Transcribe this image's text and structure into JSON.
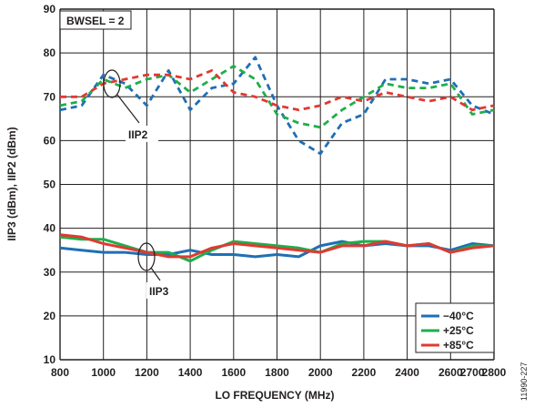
{
  "chart_data": {
    "type": "line",
    "xlabel": "LO FREQUENCY (MHz)",
    "ylabel": "IIP3 (dBm), IIP2 (dBm)",
    "xlim": [
      800,
      2800
    ],
    "ylim": [
      10,
      90
    ],
    "xticks": [
      800,
      1000,
      1200,
      1400,
      1600,
      1800,
      2000,
      2200,
      2400,
      2600,
      2700,
      2800
    ],
    "yticks": [
      10,
      20,
      30,
      40,
      50,
      60,
      70,
      80,
      90
    ],
    "grid": true,
    "legend_position": "bottom-right",
    "annotations": {
      "condition_label": "BWSEL = 2",
      "iip2_label": "IIP2",
      "iip3_label": "IIP3",
      "figure_id": "11990-227"
    },
    "colors": {
      "m40": "#1f6fb5",
      "p25": "#1fae4b",
      "p85": "#e03a32",
      "grid": "#231f20"
    },
    "series": [
      {
        "name": "−40°C",
        "group": "IIP2",
        "style": "dashed",
        "color_key": "m40",
        "x": [
          800,
          900,
          1000,
          1100,
          1200,
          1300,
          1400,
          1500,
          1600,
          1700,
          1800,
          1900,
          2000,
          2100,
          2200,
          2300,
          2400,
          2500,
          2600,
          2700,
          2800
        ],
        "y": [
          67,
          68,
          75,
          73,
          68,
          76,
          67,
          72,
          73,
          79,
          68,
          60,
          57,
          64,
          66,
          74,
          74,
          73,
          74,
          68,
          66
        ]
      },
      {
        "name": "+25°C",
        "group": "IIP2",
        "style": "dashed",
        "color_key": "p25",
        "x": [
          800,
          900,
          1000,
          1100,
          1200,
          1300,
          1400,
          1500,
          1600,
          1700,
          1800,
          1900,
          2000,
          2100,
          2200,
          2300,
          2400,
          2500,
          2600,
          2700,
          2800
        ],
        "y": [
          68,
          69,
          74,
          72,
          74,
          75,
          71,
          74,
          77,
          74,
          66,
          64,
          63,
          67,
          70,
          73,
          72,
          72,
          73,
          66,
          67
        ]
      },
      {
        "name": "+85°C",
        "group": "IIP2",
        "style": "dashed",
        "color_key": "p85",
        "x": [
          800,
          900,
          1000,
          1100,
          1200,
          1300,
          1400,
          1500,
          1600,
          1700,
          1800,
          1900,
          2000,
          2100,
          2200,
          2300,
          2400,
          2500,
          2600,
          2700,
          2800
        ],
        "y": [
          70,
          70,
          73,
          74,
          75,
          75,
          74,
          76,
          71,
          70,
          68,
          67,
          68,
          70,
          69,
          71,
          70,
          69,
          70,
          67,
          68
        ]
      },
      {
        "name": "−40°C",
        "group": "IIP3",
        "style": "solid",
        "color_key": "m40",
        "x": [
          800,
          900,
          1000,
          1100,
          1200,
          1300,
          1400,
          1500,
          1600,
          1700,
          1800,
          1900,
          2000,
          2100,
          2200,
          2300,
          2400,
          2500,
          2600,
          2700,
          2800
        ],
        "y": [
          35.5,
          35,
          34.5,
          34.5,
          34,
          34,
          35,
          34,
          34,
          33.5,
          34,
          33.5,
          36,
          37,
          36,
          36.5,
          36,
          36,
          35,
          36.5,
          36
        ]
      },
      {
        "name": "+25°C",
        "group": "IIP3",
        "style": "solid",
        "color_key": "p25",
        "x": [
          800,
          900,
          1000,
          1100,
          1200,
          1300,
          1400,
          1500,
          1600,
          1700,
          1800,
          1900,
          2000,
          2100,
          2200,
          2300,
          2400,
          2500,
          2600,
          2700,
          2800
        ],
        "y": [
          38,
          37.5,
          37.5,
          36,
          34.5,
          34.5,
          32.5,
          35,
          37,
          36.5,
          36,
          35.5,
          34.5,
          36.5,
          37,
          37,
          36,
          36.5,
          34.5,
          36,
          36
        ]
      },
      {
        "name": "+85°C",
        "group": "IIP3",
        "style": "solid",
        "color_key": "p85",
        "x": [
          800,
          900,
          1000,
          1100,
          1200,
          1300,
          1400,
          1500,
          1600,
          1700,
          1800,
          1900,
          2000,
          2100,
          2200,
          2300,
          2400,
          2500,
          2600,
          2700,
          2800
        ],
        "y": [
          38.5,
          38,
          36.5,
          35.5,
          34.5,
          33.5,
          33.5,
          35.5,
          36.5,
          36,
          35.5,
          35,
          34.5,
          36,
          36,
          37,
          36,
          36.5,
          34.5,
          35.5,
          36
        ]
      }
    ],
    "legend": [
      {
        "label": "−40°C",
        "color_key": "m40"
      },
      {
        "label": "+25°C",
        "color_key": "p25"
      },
      {
        "label": "+85°C",
        "color_key": "p85"
      }
    ]
  }
}
